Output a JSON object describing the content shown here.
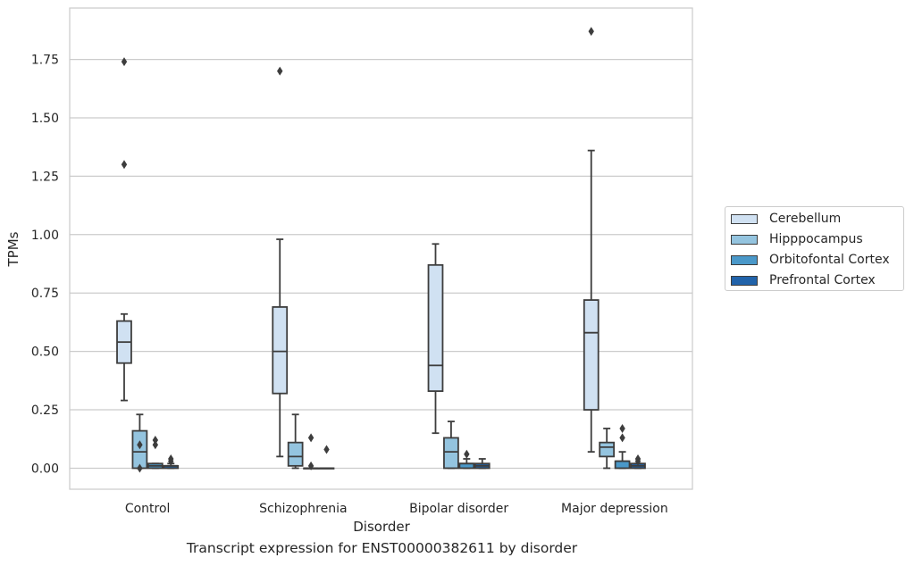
{
  "chart_data": {
    "type": "box",
    "caption": "Transcript expression for ENST00000382611 by disorder",
    "xlabel": "Disorder",
    "ylabel": "TPMs",
    "ylim": [
      -0.09,
      1.97
    ],
    "yticks": [
      "0.00",
      "0.25",
      "0.50",
      "0.75",
      "1.00",
      "1.25",
      "1.50",
      "1.75"
    ],
    "ytick_values": [
      0,
      0.25,
      0.5,
      0.75,
      1.0,
      1.25,
      1.5,
      1.75
    ],
    "grid": true,
    "legend_position": "right",
    "categories": [
      "Control",
      "Schizophrenia",
      "Bipolar disorder",
      "Major depression"
    ],
    "series": [
      {
        "name": "Cerebellum",
        "color": "#d0e1f2",
        "boxes": [
          {
            "whisker_low": 0.29,
            "q1": 0.45,
            "median": 0.54,
            "q3": 0.63,
            "whisker_high": 0.66,
            "outliers": [
              1.3,
              1.74
            ]
          },
          {
            "whisker_low": 0.05,
            "q1": 0.32,
            "median": 0.5,
            "q3": 0.69,
            "whisker_high": 0.98,
            "outliers": [
              1.7
            ]
          },
          {
            "whisker_low": 0.15,
            "q1": 0.33,
            "median": 0.44,
            "q3": 0.87,
            "whisker_high": 0.96,
            "outliers": []
          },
          {
            "whisker_low": 0.07,
            "q1": 0.25,
            "median": 0.58,
            "q3": 0.72,
            "whisker_high": 1.36,
            "outliers": [
              1.87
            ]
          }
        ]
      },
      {
        "name": "Hipppocampus",
        "color": "#94c4df",
        "boxes": [
          {
            "whisker_low": 0.0,
            "q1": 0.0,
            "median": 0.07,
            "q3": 0.16,
            "whisker_high": 0.23,
            "outliers": [
              0.0,
              0.1
            ]
          },
          {
            "whisker_low": 0.0,
            "q1": 0.01,
            "median": 0.05,
            "q3": 0.11,
            "whisker_high": 0.23,
            "outliers": []
          },
          {
            "whisker_low": 0.0,
            "q1": 0.0,
            "median": 0.07,
            "q3": 0.13,
            "whisker_high": 0.2,
            "outliers": []
          },
          {
            "whisker_low": 0.0,
            "q1": 0.05,
            "median": 0.09,
            "q3": 0.11,
            "whisker_high": 0.17,
            "outliers": []
          }
        ]
      },
      {
        "name": "Orbitofontal Cortex",
        "color": "#4a98c9",
        "boxes": [
          {
            "whisker_low": 0.0,
            "q1": 0.0,
            "median": 0.01,
            "q3": 0.02,
            "whisker_high": 0.02,
            "outliers": [
              0.1,
              0.12
            ]
          },
          {
            "whisker_low": 0.0,
            "q1": 0.0,
            "median": 0.0,
            "q3": 0.0,
            "whisker_high": 0.0,
            "outliers": [
              0.01,
              0.13
            ]
          },
          {
            "whisker_low": 0.0,
            "q1": 0.0,
            "median": 0.02,
            "q3": 0.02,
            "whisker_high": 0.04,
            "outliers": [
              0.06
            ]
          },
          {
            "whisker_low": 0.0,
            "q1": 0.0,
            "median": 0.03,
            "q3": 0.03,
            "whisker_high": 0.07,
            "outliers": [
              0.13,
              0.17
            ]
          }
        ]
      },
      {
        "name": "Prefrontal Cortex",
        "color": "#2163aa",
        "boxes": [
          {
            "whisker_low": 0.0,
            "q1": 0.0,
            "median": 0.01,
            "q3": 0.01,
            "whisker_high": 0.02,
            "outliers": [
              0.03,
              0.04
            ]
          },
          {
            "whisker_low": 0.0,
            "q1": 0.0,
            "median": 0.0,
            "q3": 0.0,
            "whisker_high": 0.0,
            "outliers": [
              0.08
            ]
          },
          {
            "whisker_low": 0.0,
            "q1": 0.0,
            "median": 0.01,
            "q3": 0.02,
            "whisker_high": 0.04,
            "outliers": []
          },
          {
            "whisker_low": 0.0,
            "q1": 0.0,
            "median": 0.01,
            "q3": 0.02,
            "whisker_high": 0.02,
            "outliers": [
              0.03,
              0.04
            ]
          }
        ]
      }
    ]
  }
}
